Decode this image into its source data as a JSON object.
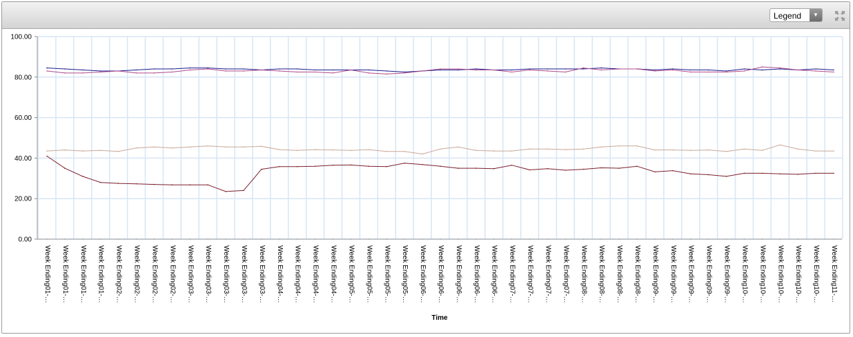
{
  "toolbar": {
    "legend_label": "Legend",
    "dropdown_icon": "chevron-down-icon",
    "expand_icon": "expand-arrows-icon"
  },
  "chart_data": {
    "type": "line",
    "title": "",
    "xlabel": "Time",
    "ylabel": "",
    "ylim": [
      0,
      100
    ],
    "yticks": [
      "0.00",
      "20.00",
      "40.00",
      "60.00",
      "80.00",
      "100.00"
    ],
    "grid": true,
    "categories": [
      "Week Ending01-…",
      "Week Ending01-…",
      "Week Ending01-…",
      "Week Ending01-…",
      "Week Ending02-…",
      "Week Ending02-…",
      "Week Ending02-…",
      "Week Ending02-…",
      "Week Ending03-…",
      "Week Ending03-…",
      "Week Ending03-…",
      "Week Ending03-…",
      "Week Ending03-…",
      "Week Ending04-…",
      "Week Ending04-…",
      "Week Ending04-…",
      "Week Ending04-…",
      "Week Ending05-…",
      "Week Ending05-…",
      "Week Ending05-…",
      "Week Ending05-…",
      "Week Ending06-…",
      "Week Ending06-…",
      "Week Ending06-…",
      "Week Ending06-…",
      "Week Ending06-…",
      "Week Ending07-…",
      "Week Ending07-…",
      "Week Ending07-…",
      "Week Ending07-…",
      "Week Ending08-…",
      "Week Ending08-…",
      "Week Ending08-…",
      "Week Ending08-…",
      "Week Ending09-…",
      "Week Ending09-…",
      "Week Ending09-…",
      "Week Ending09-…",
      "Week Ending09-…",
      "Week Ending10-…",
      "Week Ending10-…",
      "Week Ending10-…",
      "Week Ending10-…",
      "Week Ending10-…",
      "Week Ending11-…"
    ],
    "series": [
      {
        "color": "#1a1a8c",
        "values": [
          84.5,
          84,
          83.5,
          83,
          83,
          83.5,
          84,
          84,
          84.5,
          84.5,
          84,
          84,
          83.5,
          84,
          84,
          83.5,
          83.5,
          83.5,
          83.5,
          83,
          82.5,
          83,
          83.5,
          83.5,
          84,
          83.5,
          83.5,
          84,
          84,
          84,
          84,
          84.5,
          84,
          84,
          83.5,
          84,
          83.5,
          83.5,
          83,
          84,
          83.5,
          84,
          83.5,
          84,
          83.5
        ]
      },
      {
        "color": "#b04a8a",
        "values": [
          83,
          82,
          82,
          82.5,
          83,
          82,
          82,
          82.5,
          83.5,
          84,
          83,
          83,
          83.5,
          83,
          82.5,
          82.5,
          82,
          83.5,
          82,
          81.5,
          82,
          83,
          84,
          84,
          83.5,
          83.5,
          82.5,
          83.5,
          83,
          82.5,
          84.5,
          83.5,
          84,
          84,
          83,
          83.5,
          82.5,
          82.5,
          82.5,
          83,
          85,
          84.5,
          83.5,
          83,
          82.5
        ]
      },
      {
        "color": "#c9a898",
        "values": [
          43.5,
          44,
          43.5,
          43.8,
          43.3,
          45,
          45.5,
          45,
          45.5,
          46,
          45.5,
          45.5,
          45.8,
          44.2,
          43.8,
          44.2,
          44,
          43.8,
          44.2,
          43.3,
          43.3,
          42,
          44.5,
          45.5,
          43.8,
          43.5,
          43.5,
          44.5,
          44.5,
          44.2,
          44.5,
          45.5,
          46,
          46,
          44,
          44,
          43.8,
          44,
          43.3,
          44.5,
          43.8,
          46.5,
          44.5,
          43.5,
          43.5
        ]
      },
      {
        "color": "#7a1f2a",
        "values": [
          41,
          35,
          31,
          28,
          27.5,
          27.3,
          27,
          26.8,
          26.8,
          26.8,
          23.5,
          24,
          34.5,
          35.8,
          35.8,
          36,
          36.5,
          36.6,
          36,
          35.8,
          37.5,
          36.8,
          36,
          35,
          35,
          34.8,
          36.5,
          34.2,
          34.8,
          34,
          34.5,
          35.2,
          35,
          36,
          33.2,
          33.8,
          32.2,
          31.8,
          31,
          32.5,
          32.5,
          32.2,
          32,
          32.5,
          32.5
        ]
      },
      {
        "color": "#2a8a8a",
        "values": [
          0,
          0,
          0,
          0,
          0,
          0,
          0,
          0,
          0,
          0,
          0,
          0,
          0,
          0,
          0,
          0,
          0,
          0,
          0,
          0,
          0,
          0,
          0,
          0,
          0,
          0,
          0,
          0,
          0,
          0,
          0,
          0,
          0,
          0,
          0,
          0,
          0,
          0,
          0,
          0,
          0,
          0,
          0,
          0,
          0
        ]
      }
    ]
  }
}
